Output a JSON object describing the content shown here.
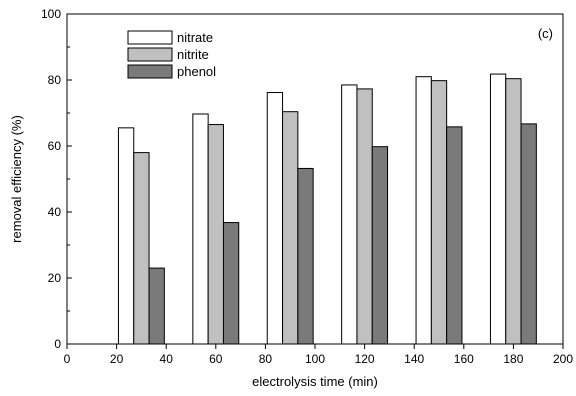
{
  "chart_data": {
    "type": "bar",
    "title": "",
    "panel_label": "(c)",
    "xlabel": "electrolysis time (min)",
    "ylabel": "removal efficiency (%)",
    "xlim": [
      0,
      200
    ],
    "ylim": [
      0,
      100
    ],
    "x_ticks": [
      0,
      20,
      40,
      60,
      80,
      100,
      120,
      140,
      160,
      180,
      200
    ],
    "y_ticks": [
      0,
      20,
      40,
      60,
      80,
      100
    ],
    "grid": false,
    "legend_position": "top-left",
    "categories": [
      30,
      60,
      90,
      120,
      150,
      180
    ],
    "series": [
      {
        "name": "nitrate",
        "color": "#ffffff",
        "values": [
          65.5,
          69.7,
          76.2,
          78.5,
          81.0,
          81.8
        ]
      },
      {
        "name": "nitrite",
        "color": "#c0c0c0",
        "values": [
          58.0,
          66.5,
          70.4,
          77.3,
          79.8,
          80.4
        ]
      },
      {
        "name": "phenol",
        "color": "#7a7a7a",
        "values": [
          23.0,
          36.8,
          53.2,
          59.8,
          65.8,
          66.7
        ]
      }
    ]
  }
}
